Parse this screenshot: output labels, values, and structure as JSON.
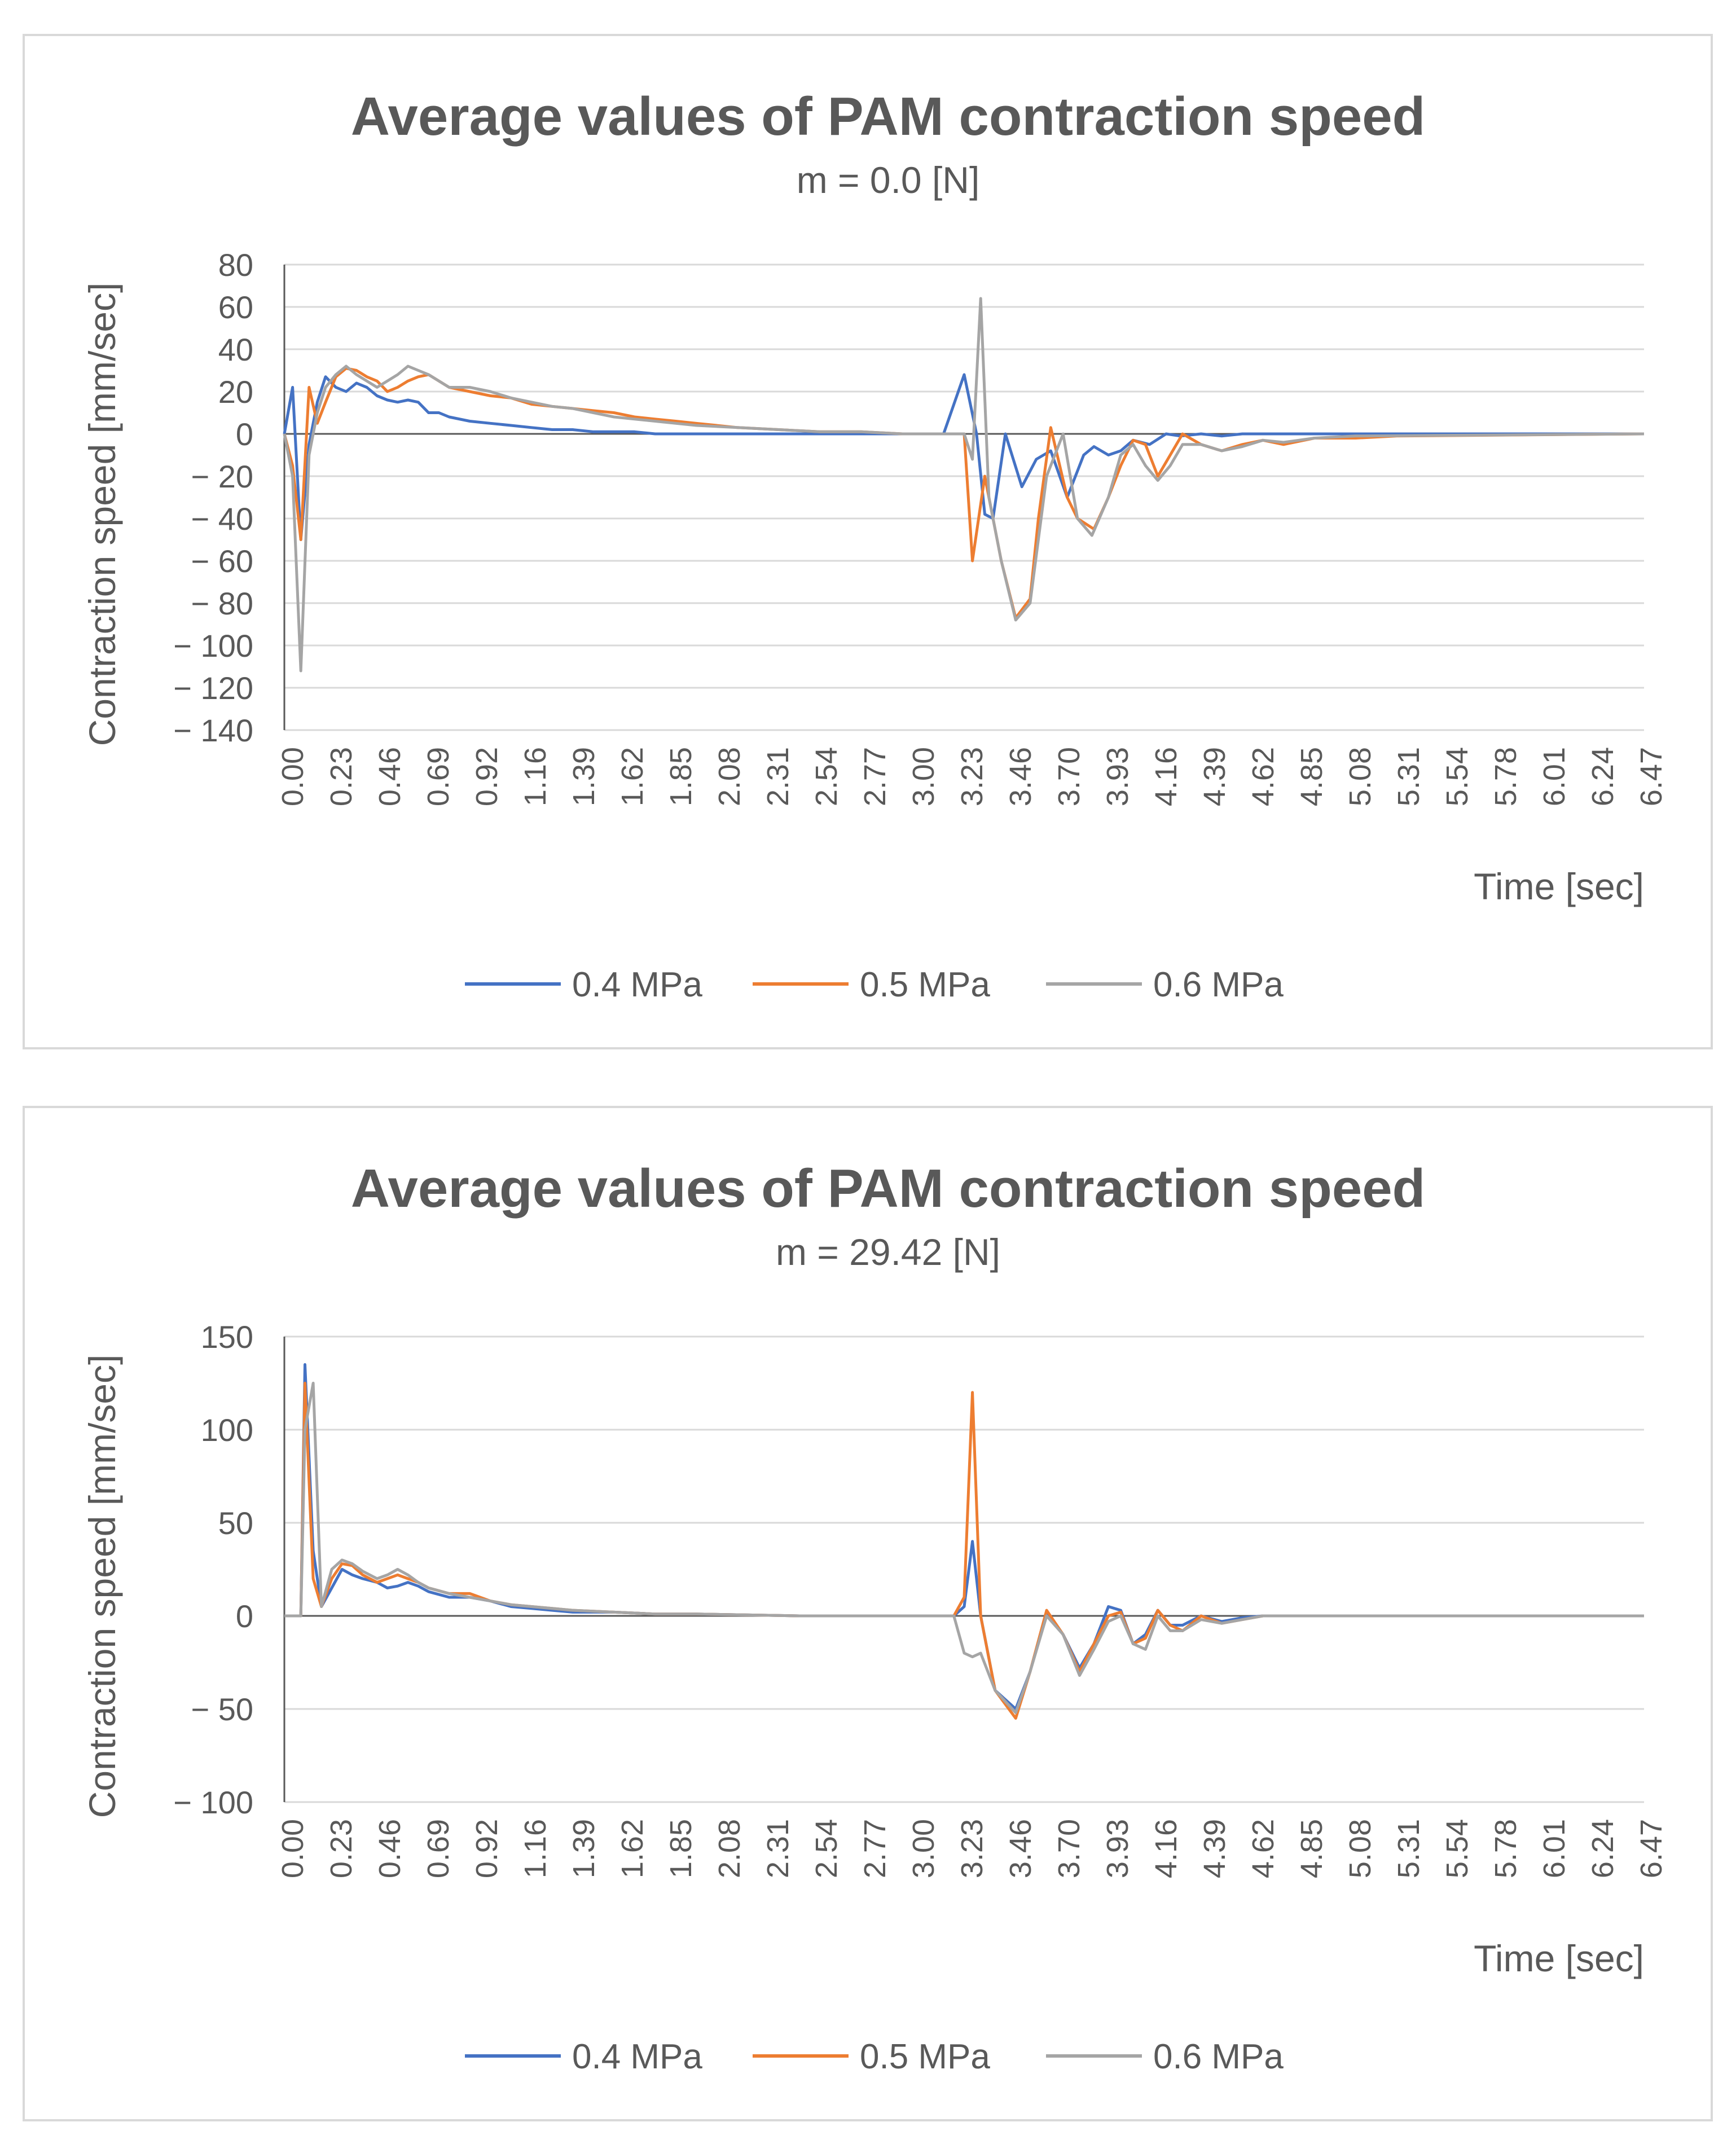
{
  "chart_data": [
    {
      "type": "line",
      "title": "Average values of PAM contraction speed",
      "subtitle": "m = 0.0 [N]",
      "xlabel": "Time [sec]",
      "ylabel": "Contraction speed [mm/sec]",
      "ylim": [
        -140,
        80
      ],
      "yticks": [
        80,
        60,
        40,
        20,
        0,
        -20,
        -40,
        -60,
        -80,
        -100,
        -120,
        -140
      ],
      "ytick_labels": [
        "80",
        "60",
        "40",
        "20",
        "0",
        "− 20",
        "− 40",
        "− 60",
        "− 80",
        "− 100",
        "− 120",
        "− 140"
      ],
      "xlim": [
        0,
        6.6
      ],
      "xticks": [
        "0.00",
        "0.23",
        "0.46",
        "0.69",
        "0.92",
        "1.16",
        "1.39",
        "1.62",
        "1.85",
        "2.08",
        "2.31",
        "2.54",
        "2.77",
        "3.00",
        "3.23",
        "3.46",
        "3.70",
        "3.93",
        "4.16",
        "4.39",
        "4.62",
        "4.85",
        "5.08",
        "5.31",
        "5.54",
        "5.78",
        "6.01",
        "6.24",
        "6.47"
      ],
      "grid": true,
      "legend_position": "bottom",
      "series": [
        {
          "name": "0.4 MPa",
          "color": "#4472C4",
          "x": [
            0.0,
            0.04,
            0.08,
            0.12,
            0.16,
            0.2,
            0.25,
            0.3,
            0.35,
            0.4,
            0.45,
            0.5,
            0.55,
            0.6,
            0.65,
            0.7,
            0.75,
            0.8,
            0.9,
            1.0,
            1.1,
            1.2,
            1.3,
            1.4,
            1.5,
            1.6,
            1.7,
            1.8,
            1.9,
            2.0,
            2.2,
            2.4,
            2.6,
            2.8,
            3.0,
            3.2,
            3.3,
            3.36,
            3.4,
            3.44,
            3.5,
            3.58,
            3.65,
            3.72,
            3.8,
            3.88,
            3.93,
            4.0,
            4.06,
            4.12,
            4.2,
            4.28,
            4.35,
            4.45,
            4.55,
            4.65,
            4.85,
            5.1,
            6.6
          ],
          "y": [
            0,
            22,
            -50,
            -5,
            15,
            27,
            22,
            20,
            24,
            22,
            18,
            16,
            15,
            16,
            15,
            10,
            10,
            8,
            6,
            5,
            4,
            3,
            2,
            2,
            1,
            1,
            1,
            0,
            0,
            0,
            0,
            0,
            0,
            0,
            0,
            0,
            28,
            0,
            -38,
            -40,
            0,
            -25,
            -12,
            -8,
            -30,
            -10,
            -6,
            -10,
            -8,
            -3,
            -5,
            0,
            -1,
            0,
            -1,
            0,
            0,
            0,
            0
          ]
        },
        {
          "name": "0.5 MPa",
          "color": "#ED7D31",
          "x": [
            0.0,
            0.04,
            0.08,
            0.12,
            0.16,
            0.2,
            0.25,
            0.3,
            0.35,
            0.4,
            0.45,
            0.5,
            0.55,
            0.6,
            0.65,
            0.7,
            0.75,
            0.8,
            0.9,
            1.0,
            1.1,
            1.2,
            1.3,
            1.4,
            1.5,
            1.6,
            1.7,
            1.8,
            1.9,
            2.0,
            2.2,
            2.4,
            2.6,
            2.8,
            3.0,
            3.2,
            3.3,
            3.34,
            3.4,
            3.48,
            3.55,
            3.62,
            3.66,
            3.72,
            3.8,
            3.85,
            3.93,
            4.0,
            4.06,
            4.12,
            4.18,
            4.24,
            4.3,
            4.36,
            4.45,
            4.55,
            4.65,
            4.75,
            4.85,
            5.0,
            5.2,
            5.4,
            6.6
          ],
          "y": [
            0,
            -15,
            -50,
            22,
            5,
            15,
            27,
            31,
            30,
            27,
            25,
            20,
            22,
            25,
            27,
            28,
            25,
            22,
            20,
            18,
            17,
            14,
            13,
            12,
            11,
            10,
            8,
            7,
            6,
            5,
            3,
            2,
            1,
            1,
            0,
            0,
            0,
            -60,
            -20,
            -60,
            -87,
            -78,
            -40,
            3,
            -30,
            -40,
            -45,
            -30,
            -15,
            -3,
            -5,
            -20,
            -10,
            0,
            -5,
            -8,
            -5,
            -3,
            -5,
            -2,
            -2,
            -1,
            0
          ]
        },
        {
          "name": "0.6 MPa",
          "color": "#A5A5A5",
          "x": [
            0.0,
            0.04,
            0.08,
            0.12,
            0.16,
            0.2,
            0.25,
            0.3,
            0.35,
            0.4,
            0.45,
            0.5,
            0.55,
            0.6,
            0.65,
            0.7,
            0.75,
            0.8,
            0.9,
            1.0,
            1.1,
            1.2,
            1.3,
            1.4,
            1.5,
            1.6,
            1.7,
            1.8,
            1.9,
            2.0,
            2.2,
            2.4,
            2.6,
            2.8,
            3.0,
            3.2,
            3.3,
            3.34,
            3.38,
            3.42,
            3.48,
            3.55,
            3.62,
            3.7,
            3.78,
            3.85,
            3.92,
            4.0,
            4.06,
            4.12,
            4.18,
            4.24,
            4.3,
            4.36,
            4.45,
            4.55,
            4.65,
            4.75,
            4.85,
            5.0,
            5.2,
            6.6
          ],
          "y": [
            0,
            -20,
            -112,
            -10,
            10,
            22,
            28,
            32,
            28,
            25,
            22,
            25,
            28,
            32,
            30,
            28,
            25,
            22,
            22,
            20,
            17,
            15,
            13,
            12,
            10,
            8,
            7,
            6,
            5,
            4,
            3,
            2,
            1,
            1,
            0,
            0,
            0,
            -12,
            64,
            -30,
            -60,
            -88,
            -80,
            -20,
            0,
            -40,
            -48,
            -30,
            -10,
            -5,
            -15,
            -22,
            -15,
            -5,
            -5,
            -8,
            -6,
            -3,
            -4,
            -2,
            -1,
            0
          ]
        }
      ]
    },
    {
      "type": "line",
      "title": "Average values of PAM contraction speed",
      "subtitle": "m = 29.42 [N]",
      "xlabel": "Time [sec]",
      "ylabel": "Contraction speed [mm/sec]",
      "ylim": [
        -100,
        150
      ],
      "yticks": [
        150,
        100,
        50,
        0,
        -50,
        -100
      ],
      "ytick_labels": [
        "150",
        "100",
        "50",
        "0",
        "− 50",
        "− 100"
      ],
      "xlim": [
        0,
        6.6
      ],
      "xticks": [
        "0.00",
        "0.23",
        "0.46",
        "0.69",
        "0.92",
        "1.16",
        "1.39",
        "1.62",
        "1.85",
        "2.08",
        "2.31",
        "2.54",
        "2.77",
        "3.00",
        "3.23",
        "3.46",
        "3.70",
        "3.93",
        "4.16",
        "4.39",
        "4.62",
        "4.85",
        "5.08",
        "5.31",
        "5.54",
        "5.78",
        "6.01",
        "6.24",
        "6.47"
      ],
      "grid": true,
      "legend_position": "bottom",
      "series": [
        {
          "name": "0.4 MPa",
          "color": "#4472C4",
          "x": [
            0.0,
            0.08,
            0.1,
            0.14,
            0.18,
            0.23,
            0.28,
            0.33,
            0.38,
            0.45,
            0.5,
            0.55,
            0.6,
            0.65,
            0.7,
            0.8,
            0.9,
            1.0,
            1.1,
            1.2,
            1.3,
            1.4,
            1.6,
            1.8,
            2.0,
            2.5,
            3.0,
            3.25,
            3.3,
            3.34,
            3.38,
            3.45,
            3.55,
            3.62,
            3.7,
            3.78,
            3.86,
            3.93,
            4.0,
            4.06,
            4.12,
            4.18,
            4.24,
            4.3,
            4.36,
            4.45,
            4.55,
            4.65,
            4.75,
            6.6
          ],
          "y": [
            0,
            0,
            135,
            35,
            5,
            15,
            25,
            22,
            20,
            18,
            15,
            16,
            18,
            16,
            13,
            10,
            10,
            8,
            5,
            4,
            3,
            2,
            2,
            1,
            1,
            0,
            0,
            0,
            5,
            40,
            0,
            -40,
            -50,
            -30,
            2,
            -10,
            -28,
            -15,
            5,
            3,
            -15,
            -10,
            3,
            -5,
            -5,
            0,
            -3,
            -1,
            0,
            0
          ]
        },
        {
          "name": "0.5 MPa",
          "color": "#ED7D31",
          "x": [
            0.0,
            0.08,
            0.1,
            0.14,
            0.18,
            0.23,
            0.28,
            0.33,
            0.38,
            0.45,
            0.5,
            0.55,
            0.6,
            0.65,
            0.7,
            0.8,
            0.9,
            1.0,
            1.1,
            1.2,
            1.3,
            1.4,
            1.6,
            1.8,
            2.0,
            2.5,
            3.0,
            3.25,
            3.3,
            3.34,
            3.38,
            3.45,
            3.55,
            3.62,
            3.7,
            3.78,
            3.86,
            3.93,
            4.0,
            4.06,
            4.12,
            4.18,
            4.24,
            4.3,
            4.36,
            4.45,
            4.55,
            4.65,
            4.75,
            6.6
          ],
          "y": [
            0,
            0,
            125,
            20,
            5,
            20,
            28,
            27,
            22,
            18,
            20,
            22,
            20,
            18,
            15,
            12,
            12,
            8,
            6,
            5,
            4,
            3,
            2,
            1,
            1,
            0,
            0,
            0,
            10,
            120,
            0,
            -40,
            -55,
            -30,
            3,
            -10,
            -30,
            -15,
            0,
            2,
            -15,
            -12,
            3,
            -5,
            -8,
            0,
            -4,
            -2,
            0,
            0
          ]
        },
        {
          "name": "0.6 MPa",
          "color": "#A5A5A5",
          "x": [
            0.0,
            0.08,
            0.1,
            0.14,
            0.18,
            0.23,
            0.28,
            0.33,
            0.38,
            0.45,
            0.5,
            0.55,
            0.6,
            0.65,
            0.7,
            0.8,
            0.9,
            1.0,
            1.1,
            1.2,
            1.3,
            1.4,
            1.6,
            1.8,
            2.0,
            2.5,
            3.0,
            3.25,
            3.3,
            3.34,
            3.38,
            3.45,
            3.55,
            3.62,
            3.7,
            3.78,
            3.86,
            3.93,
            4.0,
            4.06,
            4.12,
            4.18,
            4.24,
            4.3,
            4.36,
            4.45,
            4.55,
            4.65,
            4.75,
            6.6
          ],
          "y": [
            0,
            0,
            100,
            125,
            5,
            25,
            30,
            28,
            24,
            20,
            22,
            25,
            22,
            18,
            15,
            12,
            10,
            8,
            6,
            5,
            4,
            3,
            2,
            1,
            1,
            0,
            0,
            0,
            -20,
            -22,
            -20,
            -40,
            -52,
            -30,
            0,
            -10,
            -32,
            -18,
            -3,
            0,
            -15,
            -18,
            0,
            -8,
            -8,
            -2,
            -4,
            -2,
            0,
            0
          ]
        }
      ]
    }
  ]
}
